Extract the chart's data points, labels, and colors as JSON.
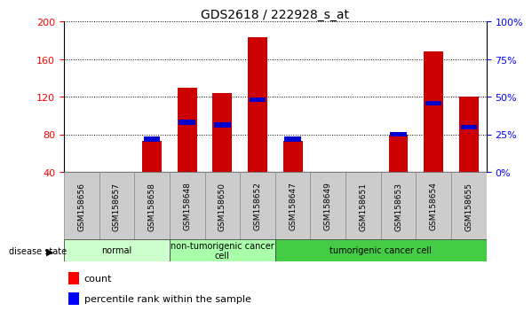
{
  "title": "GDS2618 / 222928_s_at",
  "samples": [
    "GSM158656",
    "GSM158657",
    "GSM158658",
    "GSM158648",
    "GSM158650",
    "GSM158652",
    "GSM158647",
    "GSM158649",
    "GSM158651",
    "GSM158653",
    "GSM158654",
    "GSM158655"
  ],
  "counts": [
    0,
    0,
    73,
    130,
    124,
    183,
    73,
    0,
    0,
    80,
    168,
    120
  ],
  "percentile_values": [
    null,
    null,
    75,
    93,
    90,
    117,
    75,
    null,
    null,
    80,
    113,
    88
  ],
  "ylim_left": [
    40,
    200
  ],
  "ylim_right": [
    0,
    100
  ],
  "yticks_left": [
    40,
    80,
    120,
    160,
    200
  ],
  "yticks_right": [
    0,
    25,
    50,
    75,
    100
  ],
  "bar_color": "#cc0000",
  "percentile_color": "#0000cc",
  "bar_width": 0.55,
  "groups": [
    {
      "label": "normal",
      "start": 0,
      "end": 2,
      "color": "#ccffcc"
    },
    {
      "label": "non-tumorigenic cancer\ncell",
      "start": 3,
      "end": 5,
      "color": "#aaffaa"
    },
    {
      "label": "tumorigenic cancer cell",
      "start": 6,
      "end": 11,
      "color": "#44cc44"
    }
  ],
  "group_boundaries": [
    0,
    3,
    6,
    12
  ],
  "group_colors": [
    "#ccffcc",
    "#aaffaa",
    "#44cc44"
  ],
  "group_labels": [
    "normal",
    "non-tumorigenic cancer\ncell",
    "tumorigenic cancer cell"
  ],
  "tick_bg_color": "#cccccc",
  "title_fontsize": 10,
  "tick_label_fontsize": 6.5
}
